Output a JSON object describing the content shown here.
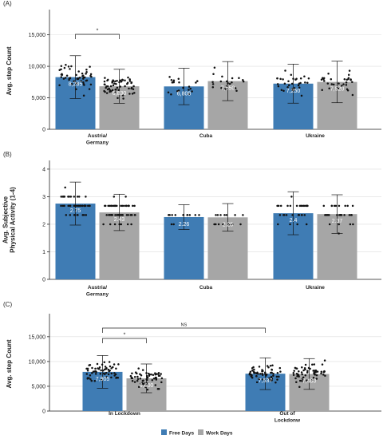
{
  "colors": {
    "free": "#3F7CB4",
    "work": "#A6A6A6",
    "axis": "#222222",
    "grid": "#DCDCDC",
    "point": "#111111",
    "bar_label": "#FFFFFF"
  },
  "legend": {
    "placement": "bottom-center",
    "items": [
      {
        "label": "Free Days",
        "color": "#3F7CB4"
      },
      {
        "label": "Work Days",
        "color": "#A6A6A6"
      }
    ]
  },
  "chart_data": [
    {
      "type": "bar",
      "panel_label": "(A)",
      "ylabel": "Avg. step Count",
      "xlabel": "",
      "ylim": [
        0,
        18500
      ],
      "yticks": [
        0,
        5000,
        10000,
        15000
      ],
      "ytick_labels": [
        "0",
        "5,000",
        "10,000",
        "15,000"
      ],
      "grid": true,
      "categories": [
        "Austria/\nGermany",
        "Cuba",
        "Ukraine"
      ],
      "series": [
        {
          "name": "Free Days",
          "values": [
            8285,
            6808,
            7250
          ],
          "err": [
            3400,
            2900,
            3100
          ],
          "labels": [
            "8,285",
            "6,808",
            "7,250"
          ]
        },
        {
          "name": "Work Days",
          "values": [
            6830,
            7650,
            7520
          ],
          "err": [
            2700,
            3100,
            3300
          ],
          "labels": [
            "6,830",
            "7,650",
            "7,520"
          ]
        }
      ],
      "points_per_bar": [
        [
          52,
          60
        ],
        [
          20,
          22
        ],
        [
          32,
          30
        ]
      ],
      "annotations": [
        {
          "text": "*",
          "between": [
            [
              0,
              0
            ],
            [
              0,
              1
            ]
          ]
        }
      ]
    },
    {
      "type": "bar",
      "panel_label": "(B)",
      "ylabel": "Avg. Subjective\nPhysical Activity (1-4)",
      "xlabel": "",
      "ylim": [
        0,
        4.2
      ],
      "yticks": [
        0,
        1,
        2,
        3,
        4
      ],
      "ytick_labels": [
        "0",
        "1",
        "2",
        "3",
        "4"
      ],
      "grid": true,
      "categories": [
        "Austria/\nGermany",
        "Cuba",
        "Ukraine"
      ],
      "series": [
        {
          "name": "Free Days",
          "values": [
            2.75,
            2.26,
            2.4
          ],
          "err": [
            0.78,
            0.45,
            0.78
          ],
          "labels": [
            "2.75",
            "2.26",
            "2.4"
          ]
        },
        {
          "name": "Work Days",
          "values": [
            2.43,
            2.25,
            2.37
          ],
          "err": [
            0.66,
            0.5,
            0.7
          ],
          "labels": [
            "2.43",
            "2.25",
            "2.37"
          ]
        }
      ],
      "points_per_bar": [
        [
          48,
          58
        ],
        [
          14,
          14
        ],
        [
          32,
          30
        ]
      ],
      "annotations": []
    },
    {
      "type": "bar",
      "panel_label": "(C)",
      "ylabel": "Avg. step Count",
      "xlabel": "",
      "ylim": [
        0,
        19000
      ],
      "yticks": [
        0,
        5000,
        10000,
        15000
      ],
      "ytick_labels": [
        "0",
        "5,000",
        "10,000",
        "15,000"
      ],
      "grid": true,
      "categories": [
        "In Lockdown",
        "Out of\nLockdonw"
      ],
      "series": [
        {
          "name": "Free Days",
          "values": [
            7905,
            7537
          ],
          "err": [
            3300,
            3200
          ],
          "labels": [
            "7,905",
            "7,537"
          ]
        },
        {
          "name": "Work Days",
          "values": [
            6600,
            7480
          ],
          "err": [
            2900,
            3100
          ],
          "labels": [
            "6,600",
            "7,480"
          ]
        }
      ],
      "points_per_bar": [
        [
          58,
          60
        ],
        [
          60,
          58
        ]
      ],
      "annotations": [
        {
          "text": "*",
          "between": [
            [
              0,
              0
            ],
            [
              0,
              1
            ]
          ]
        },
        {
          "text": "NS",
          "between": [
            [
              0,
              0
            ],
            [
              1,
              0
            ]
          ]
        }
      ]
    }
  ]
}
